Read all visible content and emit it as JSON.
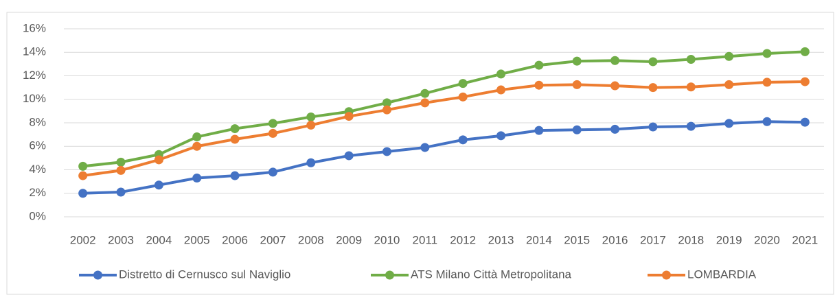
{
  "chart_data": {
    "type": "line",
    "categories": [
      "2002",
      "2003",
      "2004",
      "2005",
      "2006",
      "2007",
      "2008",
      "2009",
      "2010",
      "2011",
      "2012",
      "2013",
      "2014",
      "2015",
      "2016",
      "2017",
      "2018",
      "2019",
      "2020",
      "2021"
    ],
    "series": [
      {
        "name": "Distretto di Cernusco sul Naviglio",
        "color": "#4472c4",
        "values": [
          2.0,
          2.1,
          2.7,
          3.3,
          3.5,
          3.8,
          4.6,
          5.2,
          5.55,
          5.9,
          6.55,
          6.9,
          7.35,
          7.4,
          7.45,
          7.65,
          7.7,
          7.95,
          8.1,
          8.05
        ]
      },
      {
        "name": "ATS Milano Città Metropolitana",
        "color": "#70ad47",
        "values": [
          4.3,
          4.65,
          5.3,
          6.8,
          7.5,
          7.95,
          8.5,
          8.95,
          9.7,
          10.5,
          11.35,
          12.15,
          12.9,
          13.25,
          13.3,
          13.2,
          13.4,
          13.65,
          13.9,
          14.05
        ]
      },
      {
        "name": "LOMBARDIA",
        "color": "#ed7d31",
        "values": [
          3.5,
          3.95,
          4.85,
          6.0,
          6.6,
          7.1,
          7.8,
          8.55,
          9.1,
          9.7,
          10.2,
          10.8,
          11.2,
          11.25,
          11.15,
          11.0,
          11.05,
          11.25,
          11.45,
          11.5
        ]
      }
    ],
    "ylim": [
      0,
      16
    ],
    "yticks": [
      {
        "value": 0,
        "label": "0%"
      },
      {
        "value": 2,
        "label": "2%"
      },
      {
        "value": 4,
        "label": "4%"
      },
      {
        "value": 6,
        "label": "6%"
      },
      {
        "value": 8,
        "label": "8%"
      },
      {
        "value": 10,
        "label": "10%"
      },
      {
        "value": 12,
        "label": "12%"
      },
      {
        "value": 14,
        "label": "14%"
      },
      {
        "value": 16,
        "label": "16%"
      }
    ],
    "grid": true,
    "legend": "bottom"
  }
}
